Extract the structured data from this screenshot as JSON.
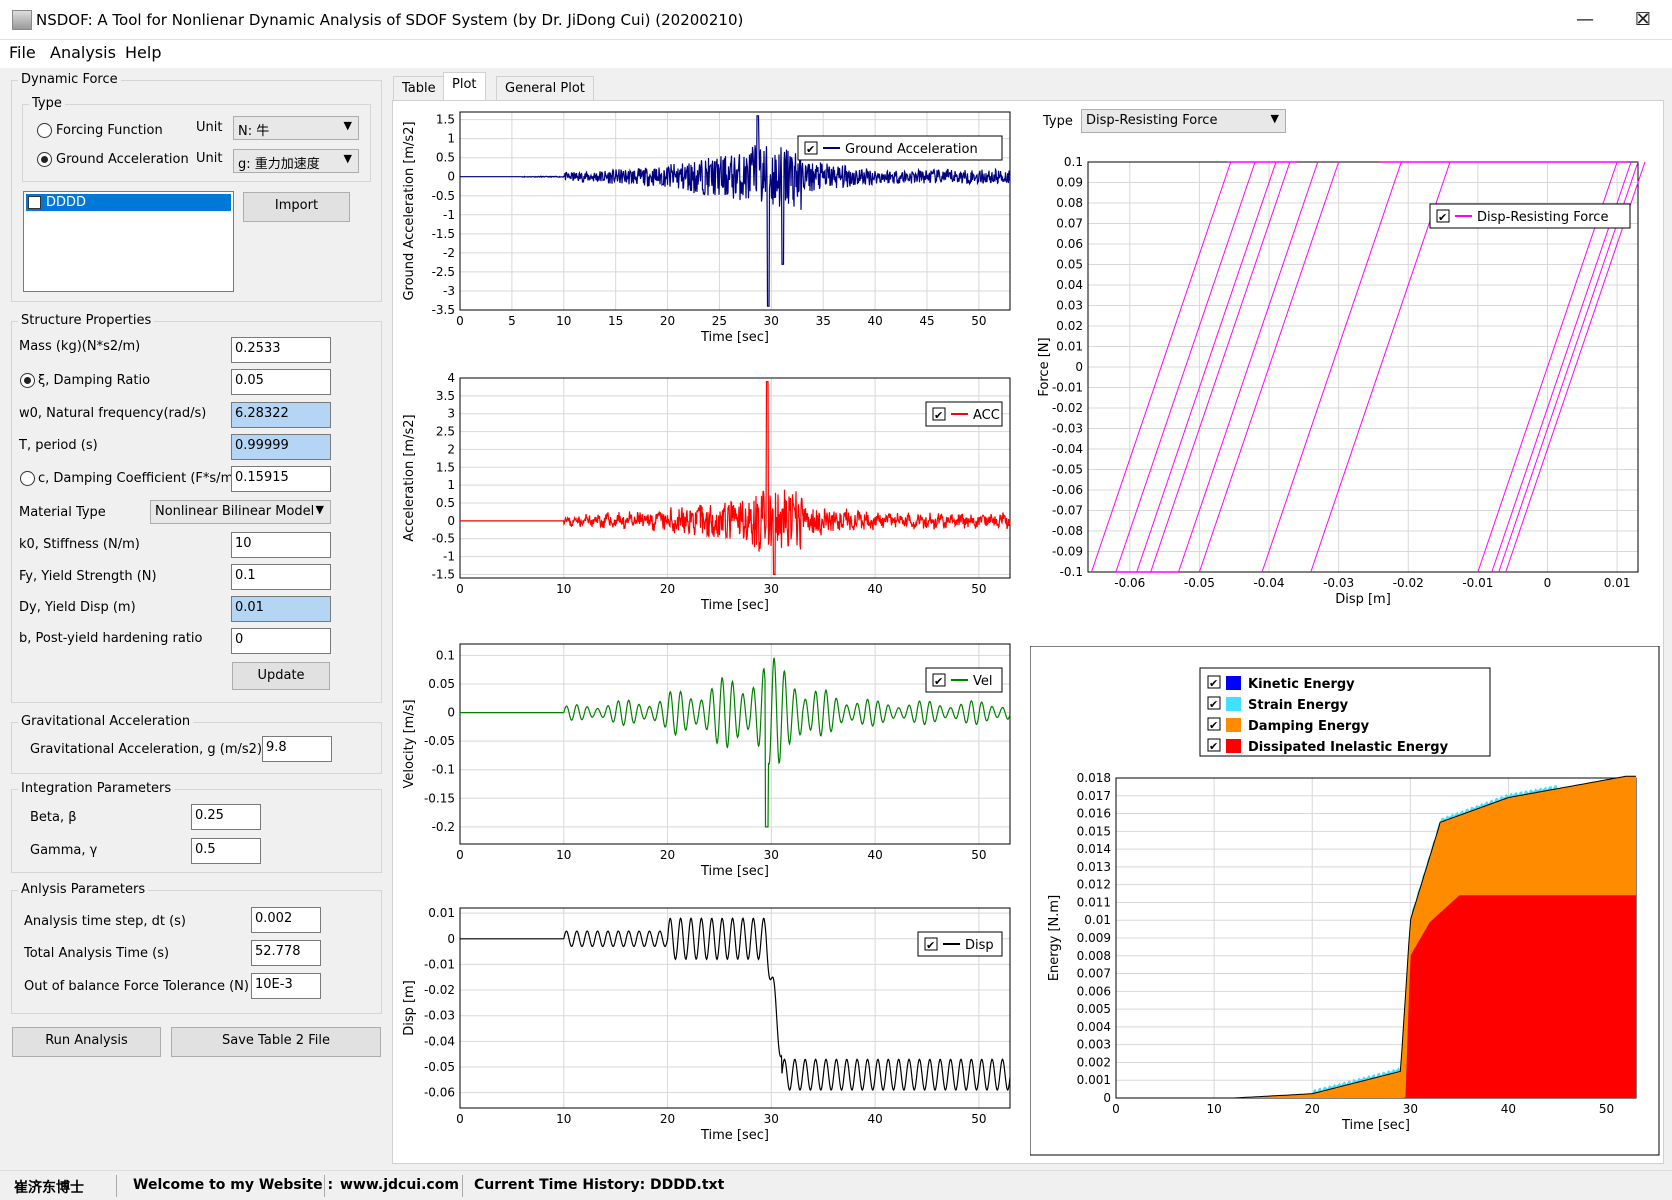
{
  "window": {
    "title": "NSDOF: A Tool for Nonlienar Dynamic Analysis of SDOF System (by Dr. JiDong Cui) (20200210)",
    "min": "—",
    "max": "☐",
    "close": "✕"
  },
  "menu": [
    "File",
    "Analysis",
    "Help"
  ],
  "dynamic_force": {
    "title": "Dynamic Force",
    "type_title": "Type",
    "forcing_function": "Forcing Function",
    "ground_acceleration": "Ground Acceleration",
    "unit_label": "Unit",
    "unit_force": "N: 牛",
    "unit_acc": "g: 重力加速度",
    "list_item": "DDDD",
    "import": "Import"
  },
  "structure": {
    "title": "Structure Properties",
    "mass_label": "Mass (kg)(N*s2/m)",
    "mass": "0.2533",
    "damping_ratio_label": "ξ, Damping Ratio",
    "damping_ratio": "0.05",
    "w0_label": "w0, Natural frequency(rad/s)",
    "w0": "6.28322",
    "period_label": "T, period (s)",
    "period": "0.99999",
    "damp_coef_label": "c, Damping Coefficient (F*s/m)",
    "damp_coef": "0.15915",
    "material_label": "Material Type",
    "material": "Nonlinear Bilinear Model",
    "k0_label": "k0, Stiffness (N/m)",
    "k0": "10",
    "fy_label": "Fy, Yield Strength (N)",
    "fy": "0.1",
    "dy_label": "Dy, Yield Disp (m)",
    "dy": "0.01",
    "b_label": "b, Post-yield hardening ratio",
    "b": "0",
    "update": "Update"
  },
  "gravity": {
    "title": "Gravitational Acceleration",
    "label": "Gravitational Acceleration, g (m/s2)",
    "value": "9.8"
  },
  "integration": {
    "title": "Integration Parameters",
    "beta_label": "Beta, β",
    "beta": "0.25",
    "gamma_label": "Gamma, γ",
    "gamma": "0.5"
  },
  "analysis": {
    "title": "Anlysis  Parameters",
    "dt_label": "Analysis time step, dt (s)",
    "dt": "0.002",
    "total_label": "Total Analysis Time (s)",
    "total": "52.778",
    "tol_label": "Out of balance Force Tolerance (N)",
    "tol": "10E-3"
  },
  "buttons": {
    "run": "Run Analysis",
    "save": "Save Table 2 File"
  },
  "tabs": [
    "Table",
    "Plot",
    "General Plot"
  ],
  "plot_type": {
    "label": "Type",
    "value": "Disp-Resisting Force"
  },
  "status": {
    "name": "崔济东博士",
    "welcome": "Welcome to my Website :",
    "url": "www.jdcui.com",
    "current": "Current Time History: DDDD.txt"
  },
  "chart_data": [
    {
      "type": "line",
      "ylabel": "Ground Acceleration [m/s2]",
      "xlabel": "Time [sec]",
      "legend": "Ground Acceleration",
      "color": "#000080",
      "xlim": [
        0,
        53
      ],
      "ylim": [
        -3.5,
        1.7
      ],
      "xticks": [
        "0",
        "5",
        "10",
        "15",
        "20",
        "25",
        "30",
        "35",
        "40",
        "45",
        "50"
      ],
      "yticks": [
        "1.5",
        "1",
        "0.5",
        "0",
        "-0.5",
        "-1",
        "-1.5",
        "-2",
        "-2.5",
        "-3",
        "-3.5"
      ]
    },
    {
      "type": "line",
      "ylabel": "Acceleration [m/s2]",
      "xlabel": "Time [sec]",
      "legend": "ACC",
      "color": "#ff0000",
      "xlim": [
        0,
        53
      ],
      "ylim": [
        -1.6,
        4
      ],
      "xticks": [
        "0",
        "10",
        "20",
        "30",
        "40",
        "50"
      ],
      "yticks": [
        "4",
        "3.5",
        "3",
        "2.5",
        "2",
        "1.5",
        "1",
        "0.5",
        "0",
        "-0.5",
        "-1",
        "-1.5"
      ]
    },
    {
      "type": "line",
      "ylabel": "Velocity [m/s]",
      "xlabel": "Time [sec]",
      "legend": "Vel",
      "color": "#008000",
      "xlim": [
        0,
        53
      ],
      "ylim": [
        -0.23,
        0.12
      ],
      "xticks": [
        "0",
        "10",
        "20",
        "30",
        "40",
        "50"
      ],
      "yticks": [
        "0.1",
        "0.05",
        "0",
        "-0.05",
        "-0.1",
        "-0.15",
        "-0.2"
      ]
    },
    {
      "type": "line",
      "ylabel": "Disp [m]",
      "xlabel": "Time [sec]",
      "legend": "Disp",
      "color": "#000000",
      "xlim": [
        0,
        53
      ],
      "ylim": [
        -0.066,
        0.012
      ],
      "xticks": [
        "0",
        "10",
        "20",
        "30",
        "40",
        "50"
      ],
      "yticks": [
        "0.01",
        "0",
        "-0.01",
        "-0.02",
        "-0.03",
        "-0.04",
        "-0.05",
        "-0.06"
      ]
    },
    {
      "type": "line",
      "ylabel": "Force [N]",
      "xlabel": "Disp [m]",
      "legend": "Disp-Resisting Force",
      "color": "#ff00ff",
      "xlim": [
        -0.066,
        0.013
      ],
      "ylim": [
        -0.1,
        0.1
      ],
      "xticks": [
        "-0.06",
        "-0.05",
        "-0.04",
        "-0.03",
        "-0.02",
        "-0.01",
        "0",
        "0.01"
      ],
      "yticks": [
        "0.1",
        "0.09",
        "0.08",
        "0.07",
        "0.06",
        "0.05",
        "0.04",
        "0.03",
        "0.02",
        "0.01",
        "0",
        "-0.01",
        "-0.02",
        "-0.03",
        "-0.04",
        "-0.05",
        "-0.06",
        "-0.07",
        "-0.08",
        "-0.09",
        "-0.1"
      ]
    },
    {
      "type": "area",
      "ylabel": "Energy [N.m]",
      "xlabel": "Time [sec]",
      "xlim": [
        0,
        53
      ],
      "ylim": [
        0,
        0.018
      ],
      "xticks": [
        "0",
        "10",
        "20",
        "30",
        "40",
        "50"
      ],
      "yticks": [
        "0.018",
        "0.017",
        "0.016",
        "0.015",
        "0.014",
        "0.013",
        "0.012",
        "0.011",
        "0.01",
        "0.009",
        "0.008",
        "0.007",
        "0.006",
        "0.005",
        "0.004",
        "0.003",
        "0.002",
        "0.001",
        "0"
      ],
      "series": [
        {
          "name": "Kinetic Energy",
          "color": "#0000ff"
        },
        {
          "name": "Strain Energy",
          "color": "#40e0ff"
        },
        {
          "name": "Damping Energy",
          "color": "#ff8c00"
        },
        {
          "name": "Dissipated Inelastic Energy",
          "color": "#ff0000"
        }
      ]
    }
  ]
}
